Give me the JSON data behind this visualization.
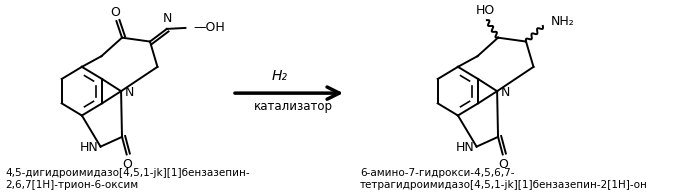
{
  "background_color": "#ffffff",
  "arrow_label_line1": "H₂",
  "arrow_label_line2": "катализатор",
  "left_caption_line1": "4,5-дигидроимидазо[4,5,1-jk][1]бензазепин-",
  "left_caption_line2": "2,6,7[1H]-трион-6-оксим",
  "right_caption_line1": "6-амино-7-гидрокси-4,5,6,7-",
  "right_caption_line2": "тетрагидроимидазо[4,5,1-jk][1]бензазепин-2[1H]-он",
  "font_size_caption": 7.5,
  "font_size_arrow_label": 9,
  "fig_width": 6.98,
  "fig_height": 1.95,
  "dpi": 100
}
